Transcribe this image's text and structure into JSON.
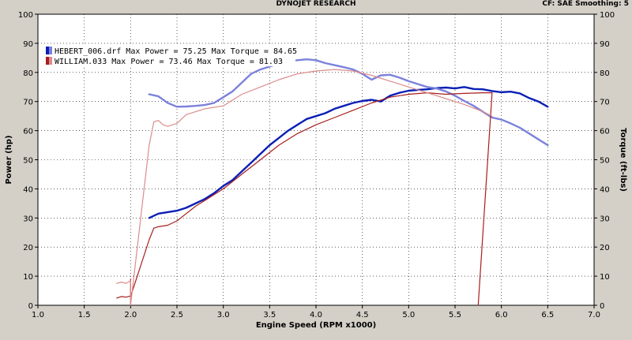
{
  "header": {
    "center_title": "DYNOJET RESEARCH",
    "right_info": "CF: SAE  Smoothing: 5"
  },
  "colors": {
    "run1_power": "#0a1fb5",
    "run1_torque": "#7b82dc",
    "run2_power": "#a81d1d",
    "run2_torque": "#dc8c8c",
    "plot_bg": "#ffffff",
    "grid": "#000000"
  },
  "chart_data": {
    "type": "line",
    "xlabel": "Engine Speed (RPM x1000)",
    "ylabel_left": "Power (hp)",
    "ylabel_right": "Torque (ft-lbs)",
    "xlim": [
      1.0,
      7.0
    ],
    "ylim": [
      0,
      100
    ],
    "x_ticks": [
      "1.0",
      "1.5",
      "2.0",
      "2.5",
      "3.0",
      "3.5",
      "4.0",
      "4.5",
      "5.0",
      "5.5",
      "6.0",
      "6.5",
      "7.0"
    ],
    "y_ticks": [
      "0",
      "10",
      "20",
      "30",
      "40",
      "50",
      "60",
      "70",
      "80",
      "90",
      "100"
    ],
    "grid": "dotted",
    "legend_position": "top-left",
    "legend": [
      {
        "label": "HEBERT_006.drf Max Power = 75.25 Max Torque = 84.65"
      },
      {
        "label": "WILLIAM.033 Max Power = 73.46 Max Torque = 81.03"
      }
    ],
    "series": [
      {
        "name": "HEBERT_006.drf Power",
        "style": "run1_power",
        "width": 2.4,
        "points": [
          [
            2.2,
            30
          ],
          [
            2.3,
            31.5
          ],
          [
            2.4,
            32
          ],
          [
            2.5,
            32.5
          ],
          [
            2.6,
            33.5
          ],
          [
            2.7,
            35
          ],
          [
            2.8,
            36.5
          ],
          [
            2.9,
            38.5
          ],
          [
            3.0,
            41
          ],
          [
            3.1,
            43
          ],
          [
            3.2,
            46
          ],
          [
            3.3,
            49
          ],
          [
            3.4,
            52
          ],
          [
            3.5,
            55
          ],
          [
            3.6,
            57.5
          ],
          [
            3.7,
            60
          ],
          [
            3.8,
            62
          ],
          [
            3.9,
            64
          ],
          [
            4.0,
            65
          ],
          [
            4.1,
            66
          ],
          [
            4.2,
            67.5
          ],
          [
            4.3,
            68.5
          ],
          [
            4.4,
            69.5
          ],
          [
            4.5,
            70.2
          ],
          [
            4.6,
            70.6
          ],
          [
            4.7,
            70
          ],
          [
            4.8,
            72
          ],
          [
            4.9,
            73
          ],
          [
            5.0,
            73.7
          ],
          [
            5.1,
            74
          ],
          [
            5.2,
            74.2
          ],
          [
            5.3,
            74.6
          ],
          [
            5.4,
            74.8
          ],
          [
            5.5,
            74.5
          ],
          [
            5.6,
            75
          ],
          [
            5.7,
            74.3
          ],
          [
            5.8,
            74.2
          ],
          [
            5.9,
            73.6
          ],
          [
            6.0,
            73.2
          ],
          [
            6.1,
            73.4
          ],
          [
            6.2,
            72.8
          ],
          [
            6.3,
            71.2
          ],
          [
            6.4,
            70
          ],
          [
            6.5,
            68.2
          ]
        ]
      },
      {
        "name": "HEBERT_006.drf Torque",
        "style": "run1_torque",
        "width": 2.4,
        "points": [
          [
            2.2,
            72.5
          ],
          [
            2.3,
            71.8
          ],
          [
            2.4,
            69.5
          ],
          [
            2.5,
            68.2
          ],
          [
            2.6,
            68.3
          ],
          [
            2.7,
            68.5
          ],
          [
            2.8,
            68.8
          ],
          [
            2.9,
            69.5
          ],
          [
            3.0,
            71.5
          ],
          [
            3.1,
            73.5
          ],
          [
            3.2,
            76.5
          ],
          [
            3.3,
            79.5
          ],
          [
            3.4,
            81
          ],
          [
            3.5,
            82
          ],
          [
            3.6,
            83
          ],
          [
            3.7,
            83.8
          ],
          [
            3.8,
            84.2
          ],
          [
            3.9,
            84.5
          ],
          [
            4.0,
            84.2
          ],
          [
            4.1,
            83.2
          ],
          [
            4.2,
            82.5
          ],
          [
            4.3,
            81.8
          ],
          [
            4.4,
            81
          ],
          [
            4.5,
            79.5
          ],
          [
            4.6,
            77.5
          ],
          [
            4.7,
            79
          ],
          [
            4.8,
            79.2
          ],
          [
            4.9,
            78.2
          ],
          [
            5.0,
            77
          ],
          [
            5.1,
            76
          ],
          [
            5.2,
            75
          ],
          [
            5.3,
            74.5
          ],
          [
            5.4,
            73.5
          ],
          [
            5.5,
            72
          ],
          [
            5.6,
            70.2
          ],
          [
            5.7,
            68.5
          ],
          [
            5.8,
            66.5
          ],
          [
            5.9,
            64.5
          ],
          [
            6.0,
            63.8
          ],
          [
            6.1,
            62.5
          ],
          [
            6.2,
            61
          ],
          [
            6.3,
            59
          ],
          [
            6.4,
            57
          ],
          [
            6.5,
            55
          ]
        ]
      },
      {
        "name": "WILLIAM.033 Power",
        "style": "run2_power",
        "width": 1.2,
        "points": [
          [
            1.85,
            2.5
          ],
          [
            1.9,
            3
          ],
          [
            1.95,
            2.8
          ],
          [
            2.0,
            3.2
          ],
          [
            2.0,
            0
          ],
          [
            2.0,
            9
          ],
          [
            2.0,
            3
          ],
          [
            2.2,
            22.5
          ],
          [
            2.25,
            26.5
          ],
          [
            2.3,
            27
          ],
          [
            2.4,
            27.5
          ],
          [
            2.5,
            29
          ],
          [
            2.6,
            31.5
          ],
          [
            2.7,
            34
          ],
          [
            2.8,
            36
          ],
          [
            2.9,
            38
          ],
          [
            3.0,
            40
          ],
          [
            3.2,
            45
          ],
          [
            3.4,
            50
          ],
          [
            3.6,
            55
          ],
          [
            3.8,
            59
          ],
          [
            4.0,
            62
          ],
          [
            4.2,
            64.5
          ],
          [
            4.4,
            67
          ],
          [
            4.6,
            69.5
          ],
          [
            4.8,
            71.5
          ],
          [
            5.0,
            72.5
          ],
          [
            5.2,
            73
          ],
          [
            5.4,
            72.5
          ],
          [
            5.6,
            72.8
          ],
          [
            5.8,
            73
          ],
          [
            5.9,
            73
          ],
          [
            5.75,
            0
          ]
        ]
      },
      {
        "name": "WILLIAM.033 Torque",
        "style": "run2_torque",
        "width": 1.2,
        "points": [
          [
            1.85,
            7.5
          ],
          [
            1.9,
            8
          ],
          [
            1.95,
            7.5
          ],
          [
            2.0,
            8.5
          ],
          [
            2.0,
            0
          ],
          [
            2.2,
            55
          ],
          [
            2.25,
            63
          ],
          [
            2.3,
            63.5
          ],
          [
            2.35,
            62
          ],
          [
            2.4,
            61.5
          ],
          [
            2.5,
            62.5
          ],
          [
            2.6,
            65.5
          ],
          [
            2.8,
            67.5
          ],
          [
            3.0,
            68.5
          ],
          [
            3.2,
            72.5
          ],
          [
            3.4,
            75
          ],
          [
            3.6,
            77.5
          ],
          [
            3.8,
            79.5
          ],
          [
            4.0,
            80.5
          ],
          [
            4.2,
            81
          ],
          [
            4.4,
            80.5
          ],
          [
            4.6,
            79
          ],
          [
            4.8,
            77
          ],
          [
            5.0,
            75
          ],
          [
            5.2,
            73
          ],
          [
            5.4,
            71
          ],
          [
            5.6,
            69
          ],
          [
            5.8,
            66.5
          ],
          [
            5.9,
            65
          ]
        ]
      }
    ]
  }
}
